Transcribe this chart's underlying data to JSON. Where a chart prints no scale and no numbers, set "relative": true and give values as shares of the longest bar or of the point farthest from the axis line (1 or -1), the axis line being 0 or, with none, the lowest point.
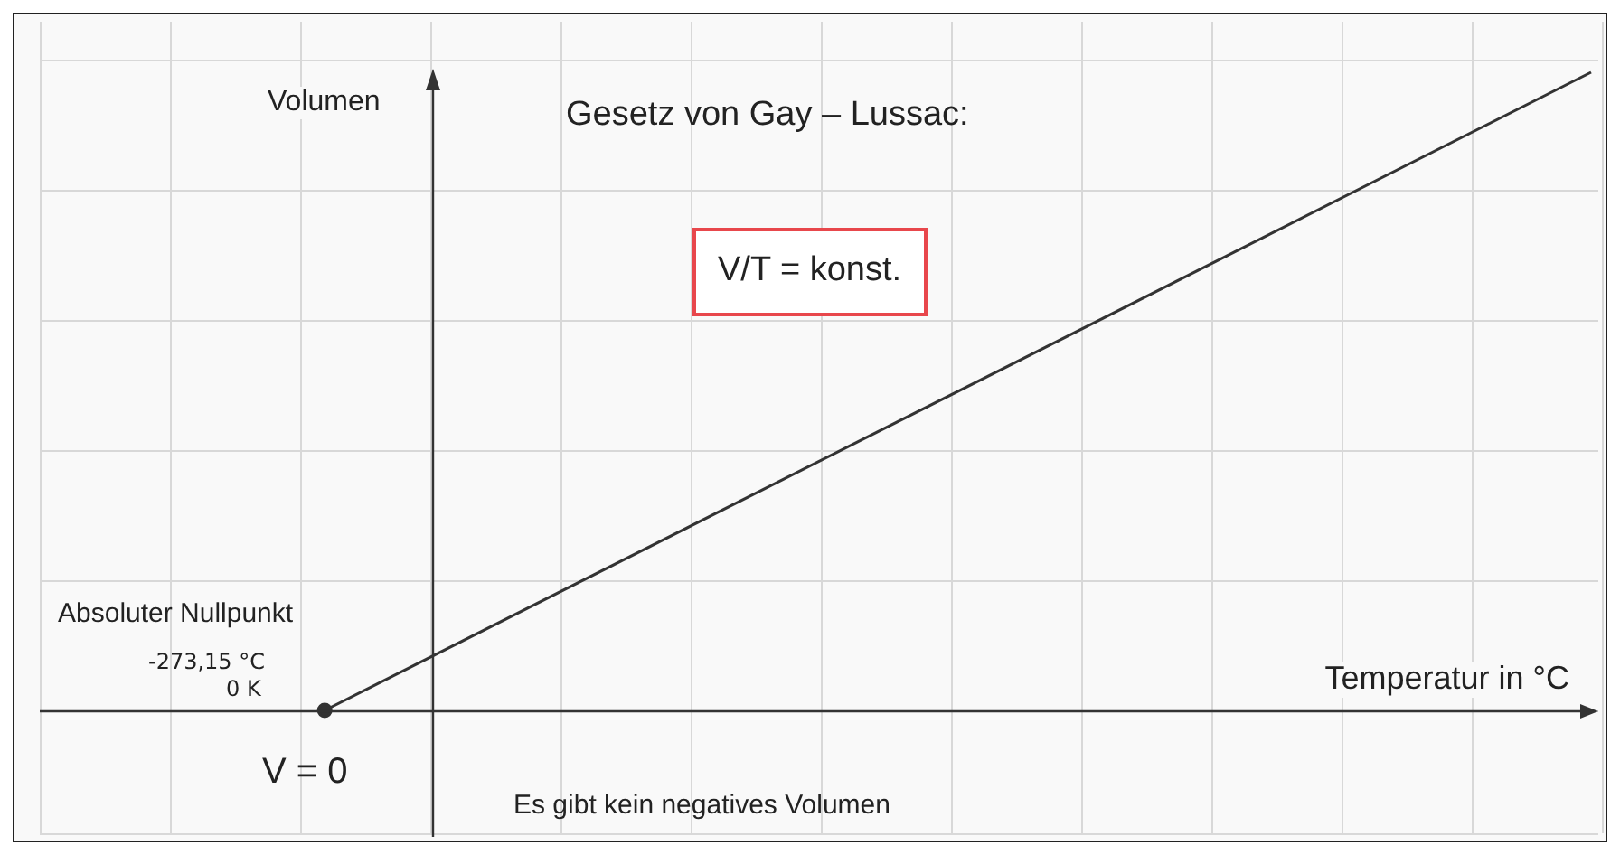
{
  "chart_data": {
    "type": "line",
    "relative": true,
    "categories": [
      null,
      null,
      null,
      null,
      null,
      null,
      null,
      null,
      null,
      null,
      null,
      null,
      null,
      null,
      null,
      null,
      null,
      null,
      null,
      null,
      null,
      null,
      null,
      null,
      null,
      null,
      null,
      null,
      null,
      null,
      null,
      null,
      null,
      null,
      null,
      null,
      null,
      null,
      null,
      null,
      null,
      null,
      null,
      null,
      null,
      null,
      null,
      null,
      null,
      null
    ],
    "series": [
      {
        "color": "#333333",
        "values": [
          null,
          null,
          null,
          null,
          null,
          null,
          null,
          null,
          null,
          0,
          null,
          null,
          null,
          null,
          null,
          null,
          null,
          null,
          null,
          null,
          null,
          null,
          null,
          null,
          null,
          null,
          null,
          null,
          null,
          null,
          null,
          null,
          null,
          null,
          null,
          null,
          null,
          null,
          null,
          null,
          null,
          null,
          null,
          null,
          null,
          null,
          null,
          null,
          null,
          1
        ]
      }
    ],
    "marker": "circle",
    "grid": true,
    "legend": false,
    "annotations": [
      "Volumen",
      "Temperatur in °C",
      "Gesetz von Gay – Lussac:",
      "V/T = konst.",
      "Absoluter Nullpunkt",
      "-273,15 °C",
      "0 K",
      "V = 0",
      "Es gibt kein negatives Volumen"
    ]
  }
}
